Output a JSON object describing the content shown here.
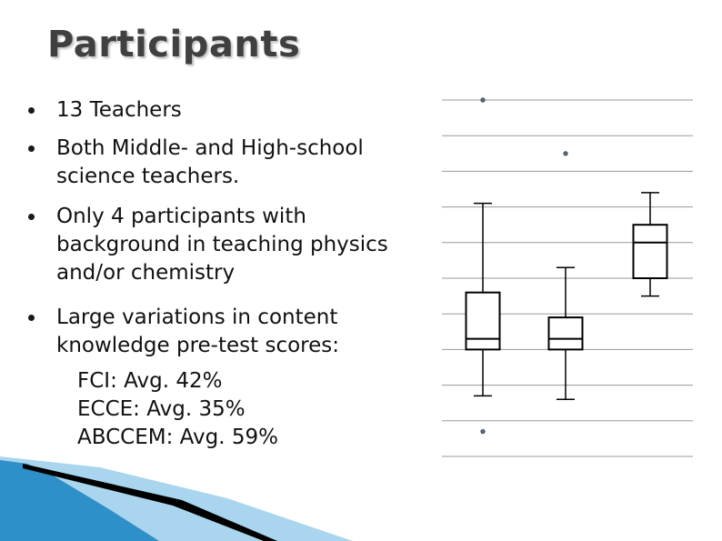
{
  "slide": {
    "title": "Participants",
    "bullets": [
      "13 Teachers",
      "Both Middle- and High-school science teachers.",
      "Only 4 participants with background in teaching physics and/or chemistry",
      "Large variations in content knowledge pre-test scores:"
    ],
    "sub_items": [
      "FCI: Avg. 42%",
      "ECCE: Avg. 35%",
      "ABCCEM: Avg. 59%"
    ]
  },
  "colors": {
    "title": "#404040",
    "decor_blue": "#2f8fc8",
    "decor_light": "#a9d6ee",
    "decor_black": "#000000"
  },
  "chart_data": {
    "type": "boxplot",
    "title": "",
    "xlabel": "",
    "ylabel": "",
    "ylim": [
      0,
      100
    ],
    "grid": true,
    "gridlines": [
      0,
      10,
      20,
      30,
      40,
      50,
      60,
      70,
      80,
      90,
      100
    ],
    "boxes": [
      {
        "whisker_low": 17,
        "q1": 30,
        "median": 33,
        "q3": 46,
        "whisker_high": 71,
        "outliers": [
          7,
          100
        ]
      },
      {
        "whisker_low": 16,
        "q1": 30,
        "median": 33,
        "q3": 39,
        "whisker_high": 53,
        "outliers": [
          85
        ]
      },
      {
        "whisker_low": 45,
        "q1": 50,
        "median": 60,
        "q3": 65,
        "whisker_high": 74,
        "outliers": []
      }
    ]
  }
}
